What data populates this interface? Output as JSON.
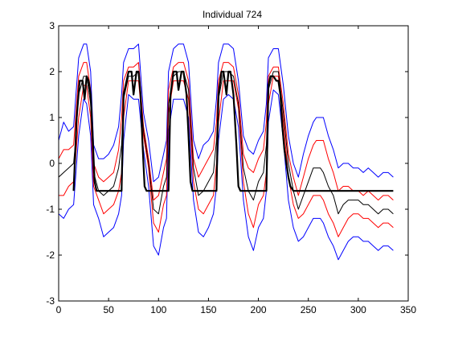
{
  "chart_data": {
    "type": "line",
    "title": "Individual 724",
    "xlabel": "",
    "ylabel": "",
    "xlim": [
      0,
      350
    ],
    "ylim": [
      -3,
      3
    ],
    "xticks": [
      0,
      50,
      100,
      150,
      200,
      250,
      300,
      350
    ],
    "yticks": [
      -3,
      -2,
      -1,
      0,
      1,
      2,
      3
    ],
    "xtick_labels": [
      "0",
      "50",
      "100",
      "150",
      "200",
      "250",
      "300",
      "350"
    ],
    "ytick_labels": [
      "-3",
      "-2",
      "-1",
      "0",
      "1",
      "2",
      "3"
    ],
    "grid": false,
    "legend": "none",
    "series": [
      {
        "role": "outer-band-upper",
        "color": "#0000ff",
        "width": 1,
        "x": [
          0,
          5,
          10,
          15,
          17,
          20,
          25,
          28,
          32,
          35,
          40,
          45,
          50,
          55,
          60,
          63,
          65,
          70,
          75,
          80,
          85,
          90,
          95,
          100,
          105,
          108,
          110,
          115,
          120,
          125,
          130,
          135,
          140,
          145,
          150,
          155,
          158,
          160,
          165,
          170,
          175,
          180,
          185,
          190,
          195,
          200,
          205,
          208,
          210,
          215,
          220,
          225,
          230,
          235,
          240,
          245,
          250,
          255,
          258,
          262,
          265,
          270,
          275,
          280,
          285,
          290,
          295,
          300,
          305,
          310,
          315,
          320,
          325,
          330,
          335
        ],
        "y": [
          0.5,
          0.9,
          0.7,
          0.8,
          1.4,
          2.3,
          2.6,
          2.6,
          2.0,
          0.4,
          0.1,
          0.1,
          0.2,
          0.4,
          0.8,
          1.5,
          2.2,
          2.5,
          2.5,
          2.6,
          1.1,
          0.5,
          -0.4,
          -0.3,
          0.2,
          0.5,
          2.0,
          2.5,
          2.6,
          2.6,
          2.2,
          0.5,
          0.1,
          0.4,
          0.5,
          0.7,
          1.4,
          2.2,
          2.6,
          2.6,
          2.5,
          1.8,
          0.6,
          0.3,
          0.2,
          0.5,
          0.7,
          1.3,
          2.3,
          2.5,
          2.5,
          1.7,
          0.6,
          0.0,
          -0.3,
          0.2,
          0.6,
          0.9,
          1.0,
          1.0,
          1.0,
          0.6,
          0.3,
          -0.1,
          0.0,
          0.0,
          -0.1,
          -0.1,
          -0.2,
          -0.1,
          -0.2,
          -0.3,
          -0.2,
          -0.2,
          -0.3
        ]
      },
      {
        "role": "outer-band-lower",
        "color": "#0000ff",
        "width": 1,
        "x": [
          0,
          5,
          10,
          15,
          17,
          20,
          25,
          28,
          32,
          35,
          40,
          45,
          50,
          55,
          60,
          63,
          65,
          70,
          75,
          80,
          85,
          90,
          95,
          100,
          105,
          108,
          110,
          115,
          120,
          125,
          130,
          135,
          140,
          145,
          150,
          155,
          158,
          160,
          165,
          170,
          175,
          180,
          185,
          190,
          195,
          200,
          205,
          208,
          210,
          215,
          220,
          225,
          230,
          235,
          240,
          245,
          250,
          255,
          258,
          262,
          265,
          270,
          275,
          280,
          285,
          290,
          295,
          300,
          305,
          310,
          315,
          320,
          325,
          330,
          335
        ],
        "y": [
          -1.1,
          -1.2,
          -1.0,
          -0.9,
          -0.3,
          0.6,
          1.4,
          1.3,
          0.6,
          -0.9,
          -1.2,
          -1.6,
          -1.5,
          -1.4,
          -1.1,
          -0.7,
          0.5,
          1.5,
          1.4,
          1.4,
          0.3,
          -0.5,
          -1.8,
          -2.0,
          -1.4,
          -1.2,
          0.7,
          1.4,
          1.4,
          1.4,
          1.0,
          -0.8,
          -1.5,
          -1.6,
          -1.4,
          -1.1,
          -0.5,
          0.5,
          1.4,
          1.5,
          1.4,
          0.8,
          -0.8,
          -1.6,
          -1.9,
          -1.4,
          -1.2,
          -0.6,
          0.9,
          1.6,
          1.5,
          0.5,
          -0.8,
          -1.4,
          -1.7,
          -1.6,
          -1.4,
          -1.2,
          -1.2,
          -1.2,
          -1.3,
          -1.6,
          -1.8,
          -2.1,
          -1.9,
          -1.7,
          -1.6,
          -1.6,
          -1.7,
          -1.7,
          -1.8,
          -1.9,
          -1.8,
          -1.8,
          -1.9
        ]
      },
      {
        "role": "inner-band-upper",
        "color": "#ff0000",
        "width": 1,
        "x": [
          0,
          5,
          10,
          15,
          17,
          20,
          25,
          28,
          32,
          35,
          40,
          45,
          50,
          55,
          60,
          63,
          65,
          70,
          75,
          80,
          85,
          90,
          95,
          100,
          105,
          108,
          110,
          115,
          120,
          125,
          130,
          135,
          140,
          145,
          150,
          155,
          158,
          160,
          165,
          170,
          175,
          180,
          185,
          190,
          195,
          200,
          205,
          208,
          210,
          215,
          220,
          225,
          230,
          235,
          240,
          245,
          250,
          255,
          258,
          262,
          265,
          270,
          275,
          280,
          285,
          290,
          295,
          300,
          305,
          310,
          315,
          320,
          325,
          330,
          335
        ],
        "y": [
          0.1,
          0.3,
          0.3,
          0.4,
          1.0,
          1.9,
          2.2,
          2.2,
          1.6,
          0.0,
          -0.3,
          -0.4,
          -0.3,
          -0.2,
          0.3,
          1.0,
          1.8,
          2.1,
          2.1,
          2.2,
          0.8,
          0.1,
          -0.8,
          -0.7,
          -0.2,
          0.1,
          1.6,
          2.1,
          2.2,
          2.2,
          1.8,
          0.1,
          -0.3,
          -0.1,
          0.1,
          0.3,
          0.9,
          1.8,
          2.2,
          2.2,
          2.1,
          1.5,
          0.2,
          -0.1,
          -0.2,
          0.1,
          0.3,
          0.9,
          1.9,
          2.1,
          2.1,
          1.3,
          0.2,
          -0.3,
          -0.7,
          -0.3,
          0.1,
          0.4,
          0.5,
          0.5,
          0.5,
          0.1,
          -0.2,
          -0.6,
          -0.5,
          -0.5,
          -0.6,
          -0.6,
          -0.7,
          -0.6,
          -0.7,
          -0.8,
          -0.7,
          -0.7,
          -0.8
        ]
      },
      {
        "role": "inner-band-lower",
        "color": "#ff0000",
        "width": 1,
        "x": [
          0,
          5,
          10,
          15,
          17,
          20,
          25,
          28,
          32,
          35,
          40,
          45,
          50,
          55,
          60,
          63,
          65,
          70,
          75,
          80,
          85,
          90,
          95,
          100,
          105,
          108,
          110,
          115,
          120,
          125,
          130,
          135,
          140,
          145,
          150,
          155,
          158,
          160,
          165,
          170,
          175,
          180,
          185,
          190,
          195,
          200,
          205,
          208,
          210,
          215,
          220,
          225,
          230,
          235,
          240,
          245,
          250,
          255,
          258,
          262,
          265,
          270,
          275,
          280,
          285,
          290,
          295,
          300,
          305,
          310,
          315,
          320,
          325,
          330,
          335
        ],
        "y": [
          -0.7,
          -0.7,
          -0.5,
          -0.4,
          0.1,
          1.0,
          1.7,
          1.7,
          1.0,
          -0.5,
          -0.8,
          -1.1,
          -1.0,
          -0.9,
          -0.6,
          -0.2,
          1.0,
          1.8,
          1.8,
          1.8,
          0.6,
          -0.1,
          -1.3,
          -1.5,
          -0.9,
          -0.7,
          1.1,
          1.8,
          1.8,
          1.8,
          1.4,
          -0.4,
          -1.0,
          -1.1,
          -0.9,
          -0.7,
          0.0,
          0.9,
          1.8,
          1.8,
          1.8,
          1.2,
          -0.4,
          -1.1,
          -1.4,
          -0.9,
          -0.7,
          -0.2,
          1.3,
          1.9,
          1.9,
          0.9,
          -0.3,
          -0.9,
          -1.2,
          -1.1,
          -0.9,
          -0.7,
          -0.7,
          -0.7,
          -0.8,
          -1.1,
          -1.3,
          -1.6,
          -1.4,
          -1.2,
          -1.1,
          -1.1,
          -1.2,
          -1.2,
          -1.3,
          -1.4,
          -1.3,
          -1.3,
          -1.4
        ]
      },
      {
        "role": "mean",
        "color": "#000000",
        "width": 1,
        "x": [
          0,
          5,
          10,
          15,
          17,
          20,
          25,
          28,
          32,
          35,
          40,
          45,
          50,
          55,
          60,
          63,
          65,
          70,
          75,
          80,
          85,
          90,
          95,
          100,
          105,
          108,
          110,
          115,
          120,
          125,
          130,
          135,
          140,
          145,
          150,
          155,
          158,
          160,
          165,
          170,
          175,
          180,
          185,
          190,
          195,
          200,
          205,
          208,
          210,
          215,
          220,
          225,
          230,
          235,
          240,
          245,
          250,
          255,
          258,
          262,
          265,
          270,
          275,
          280,
          285,
          290,
          295,
          300,
          305,
          310,
          315,
          320,
          325,
          330,
          335
        ],
        "y": [
          -0.3,
          -0.2,
          -0.1,
          0.0,
          0.5,
          1.5,
          1.9,
          1.9,
          1.3,
          -0.2,
          -0.6,
          -0.7,
          -0.6,
          -0.5,
          -0.1,
          0.4,
          1.4,
          1.9,
          1.9,
          2.0,
          0.7,
          0.0,
          -1.0,
          -1.1,
          -0.5,
          -0.3,
          1.3,
          1.9,
          2.0,
          2.0,
          1.6,
          -0.1,
          -0.7,
          -0.6,
          -0.4,
          -0.2,
          0.5,
          1.4,
          2.0,
          2.0,
          1.9,
          1.3,
          -0.1,
          -0.6,
          -0.8,
          -0.4,
          -0.2,
          0.4,
          1.6,
          2.0,
          2.0,
          1.1,
          0.0,
          -0.6,
          -1.0,
          -0.7,
          -0.4,
          -0.1,
          -0.1,
          -0.1,
          -0.2,
          -0.5,
          -0.7,
          -1.1,
          -0.9,
          -0.8,
          -0.8,
          -0.8,
          -0.9,
          -0.9,
          -1.0,
          -1.1,
          -1.0,
          -1.0,
          -1.1
        ]
      },
      {
        "role": "observed",
        "color": "#000000",
        "width": 2.2,
        "x": [
          15,
          18,
          21,
          24,
          26,
          28,
          30,
          32,
          34,
          36,
          38,
          40,
          45,
          50,
          55,
          60,
          63,
          65,
          70,
          73,
          75,
          78,
          80,
          82,
          84,
          86,
          88,
          90,
          95,
          100,
          105,
          110,
          112,
          115,
          118,
          120,
          123,
          125,
          128,
          130,
          132,
          134,
          136,
          138,
          140,
          145,
          150,
          155,
          158,
          160,
          163,
          165,
          168,
          170,
          172,
          175,
          178,
          180,
          182,
          184,
          186,
          188,
          190,
          195,
          200,
          205,
          208,
          210,
          212,
          215,
          218,
          220,
          222,
          224,
          226,
          228,
          230,
          232,
          235,
          240,
          250,
          260,
          270,
          280,
          290,
          300,
          310,
          320,
          330,
          335
        ],
        "y": [
          -0.6,
          1.0,
          1.8,
          1.8,
          1.4,
          1.9,
          1.8,
          1.5,
          0.6,
          -0.4,
          -0.6,
          -0.6,
          -0.6,
          -0.6,
          -0.6,
          -0.6,
          -0.6,
          1.5,
          2.0,
          2.0,
          1.5,
          2.0,
          2.0,
          1.5,
          0.4,
          -0.5,
          -0.6,
          -0.6,
          -0.6,
          -0.6,
          -0.6,
          -0.6,
          1.5,
          2.0,
          2.0,
          1.6,
          2.0,
          2.0,
          1.5,
          0.6,
          -0.4,
          -0.6,
          -0.6,
          -0.6,
          -0.6,
          -0.6,
          -0.6,
          -0.6,
          -0.6,
          1.5,
          2.0,
          2.0,
          1.5,
          2.0,
          2.0,
          1.5,
          0.4,
          -0.5,
          -0.6,
          -0.6,
          -0.6,
          -0.6,
          -0.6,
          -0.6,
          -0.6,
          -0.6,
          -0.6,
          1.7,
          1.9,
          1.9,
          1.8,
          1.8,
          1.5,
          0.8,
          0.3,
          0.0,
          -0.3,
          -0.5,
          -0.6,
          -0.6,
          -0.6,
          -0.6,
          -0.6,
          -0.6,
          -0.6,
          -0.6,
          -0.6,
          -0.6,
          -0.6,
          -0.6
        ]
      }
    ]
  }
}
